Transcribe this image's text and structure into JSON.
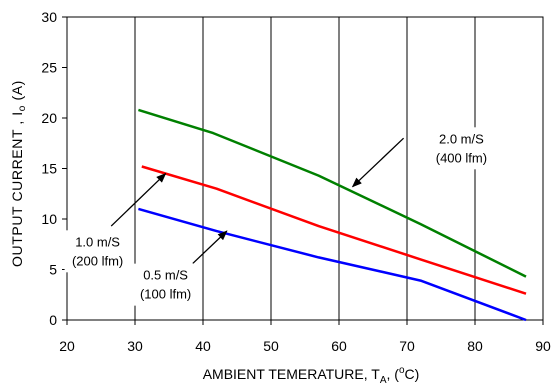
{
  "chart_data": {
    "type": "line",
    "title": "",
    "xlabel": "AMBIENT TEMERATURE, T_A, (°C)",
    "xlabel_parts": {
      "main": "AMBIENT TEMERATURE, T",
      "sub": "A",
      "sep": ", (",
      "sup": "o",
      "end": "C)"
    },
    "ylabel": "OUTPUT CURRENT , Io (A)",
    "ylabel_parts": {
      "main": "OUTPUT CURRENT , I",
      "sub": "o",
      "end": " (A)"
    },
    "xlim": [
      20,
      90
    ],
    "ylim": [
      0,
      30
    ],
    "x_ticks": [
      20,
      30,
      40,
      50,
      60,
      70,
      80,
      90
    ],
    "y_ticks": [
      0,
      5,
      10,
      15,
      20,
      25,
      30
    ],
    "grid": "vertical",
    "legend": "none",
    "series": [
      {
        "name": "2.0 m/S (400 lfm)",
        "color": "#008000",
        "points": [
          [
            30.5,
            20.8
          ],
          [
            41.5,
            18.5
          ],
          [
            57,
            14.3
          ],
          [
            72,
            9.5
          ],
          [
            87.5,
            4.3
          ]
        ]
      },
      {
        "name": "1.0 m/S (200 lfm)",
        "color": "#ff0000",
        "points": [
          [
            31,
            15.2
          ],
          [
            42,
            13.0
          ],
          [
            57,
            9.3
          ],
          [
            72,
            6.0
          ],
          [
            87.5,
            2.6
          ]
        ]
      },
      {
        "name": "0.5 m/S (100 lfm)",
        "color": "#0000ff",
        "points": [
          [
            30.5,
            11.0
          ],
          [
            42,
            8.8
          ],
          [
            57,
            6.2
          ],
          [
            72,
            3.9
          ],
          [
            87.5,
            0.0
          ]
        ]
      }
    ],
    "annotations": [
      {
        "lines": [
          "2.0 m/S",
          "(400 lfm)"
        ],
        "series_index": 0,
        "text_at": [
          78,
          17.0
        ],
        "arrow_to": [
          62,
          13.2
        ],
        "arrow_from": [
          69.5,
          18.0
        ]
      },
      {
        "lines": [
          "1.0 m/S",
          "(200 lfm)"
        ],
        "series_index": 1,
        "text_at": [
          24.5,
          6.8
        ],
        "arrow_to": [
          34.5,
          14.5
        ],
        "arrow_from": [
          26.5,
          9.3
        ]
      },
      {
        "lines": [
          "0.5 m/S",
          "(100 lfm)"
        ],
        "series_index": 2,
        "text_at": [
          34.5,
          3.5
        ],
        "arrow_to": [
          43.5,
          8.8
        ],
        "arrow_from": [
          38.5,
          5.6
        ]
      }
    ]
  }
}
